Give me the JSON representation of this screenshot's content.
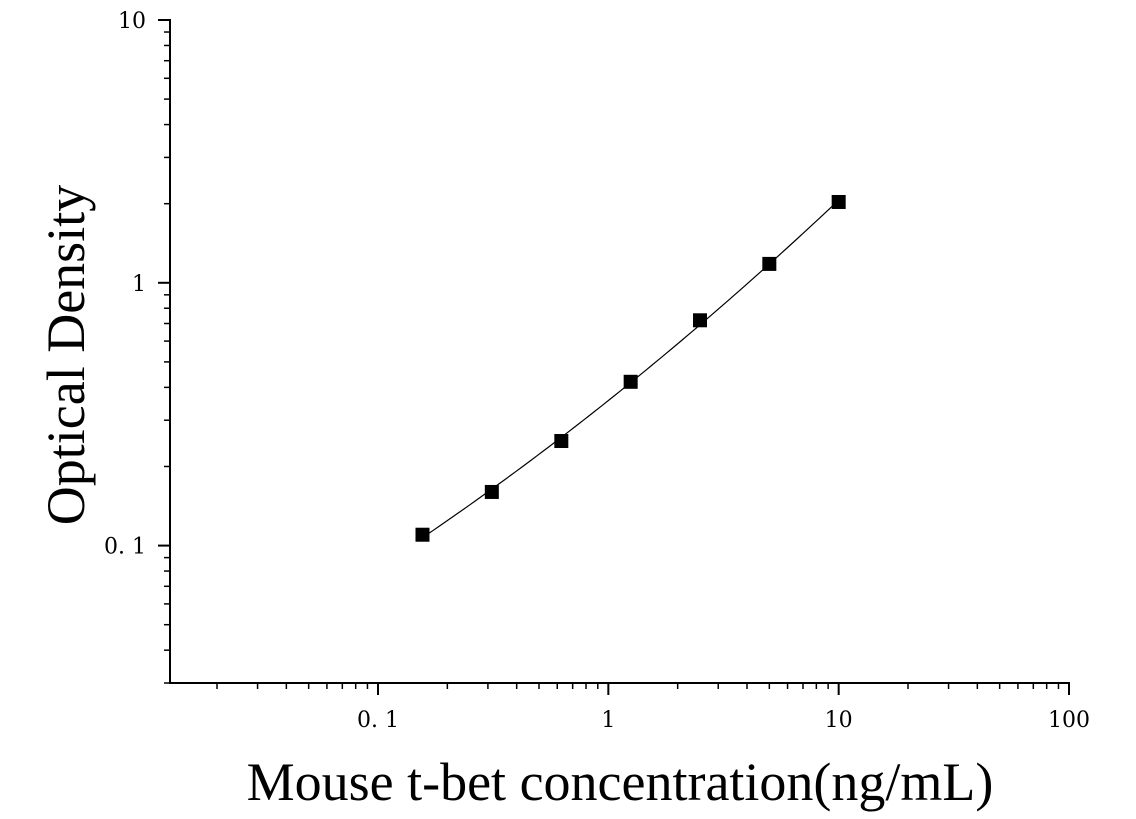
{
  "chart_data": {
    "type": "scatter",
    "xlabel": "Mouse t-bet concentration(ng/mL)",
    "ylabel": "Optical Density",
    "xscale": "log",
    "yscale": "log",
    "xlim": [
      0.0125,
      100
    ],
    "ylim": [
      0.03,
      10
    ],
    "x_ticks": [
      {
        "value": 0.1,
        "label": "0. 1"
      },
      {
        "value": 1,
        "label": "1"
      },
      {
        "value": 10,
        "label": "10"
      },
      {
        "value": 100,
        "label": "100"
      }
    ],
    "y_ticks": [
      {
        "value": 0.1,
        "label": "0. 1"
      },
      {
        "value": 1,
        "label": "1"
      },
      {
        "value": 10,
        "label": "10"
      }
    ],
    "grid": false,
    "legend": "none",
    "marker_color": "#000000",
    "series": [
      {
        "x": [
          0.156,
          0.312,
          0.625,
          1.25,
          2.5,
          5,
          10
        ],
        "y": [
          0.11,
          0.16,
          0.25,
          0.42,
          0.72,
          1.18,
          2.03
        ]
      }
    ]
  }
}
